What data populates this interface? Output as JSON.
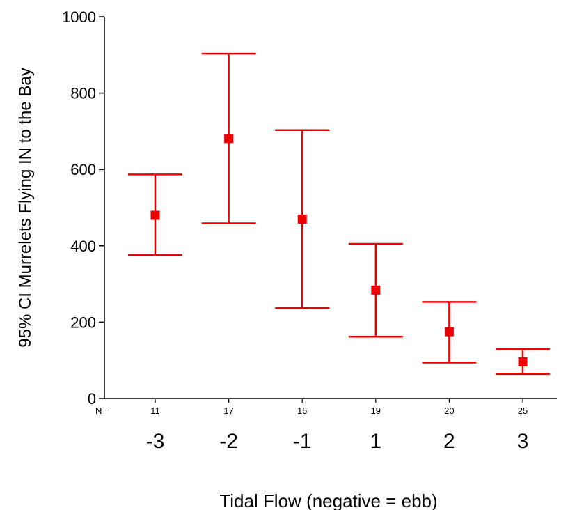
{
  "chart_data": {
    "type": "errorbar",
    "title": "",
    "xlabel": "Tidal Flow (negative = ebb)",
    "ylabel": "95% CI Murrelets Flying IN to the Bay",
    "ylim": [
      0,
      1000
    ],
    "yticks": [
      0,
      200,
      400,
      600,
      800,
      1000
    ],
    "n_label": "N =",
    "categories": [
      "-3",
      "-2",
      "-1",
      "1",
      "2",
      "3"
    ],
    "n": [
      "11",
      "17",
      "16",
      "19",
      "20",
      "25"
    ],
    "mean": [
      480,
      681,
      470,
      284,
      175,
      96
    ],
    "ci_lower": [
      376,
      459,
      237,
      162,
      94,
      64
    ],
    "ci_upper": [
      587,
      903,
      703,
      405,
      253,
      129
    ],
    "color": "#ee0000",
    "grid": false,
    "legend": "none"
  }
}
